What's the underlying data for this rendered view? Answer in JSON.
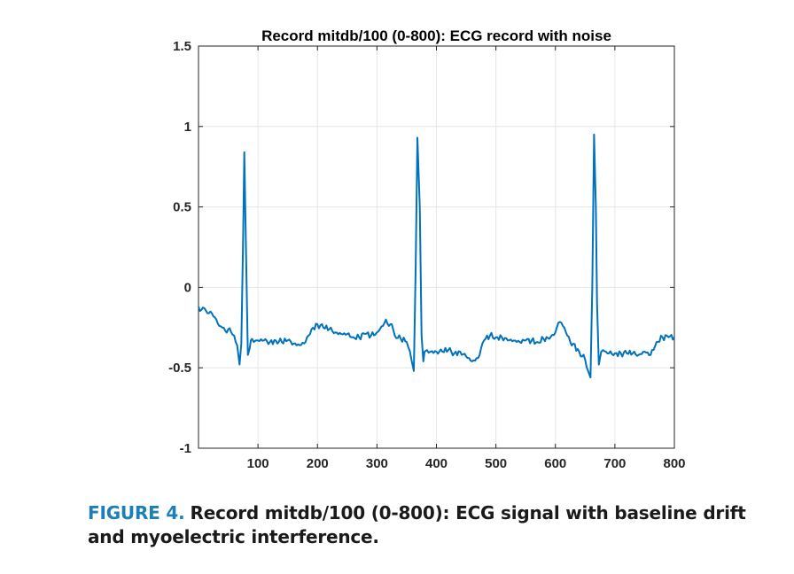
{
  "chart_data": {
    "type": "line",
    "title": "Record mitdb/100 (0-800): ECG record with noise",
    "xlabel": "",
    "ylabel": "",
    "xlim": [
      0,
      800
    ],
    "ylim": [
      -1,
      1.5
    ],
    "grid": true,
    "x_ticks": [
      100,
      200,
      300,
      400,
      500,
      600,
      700,
      800
    ],
    "x_tick_labels": [
      "100",
      "200",
      "300",
      "400",
      "500",
      "600",
      "700",
      "800"
    ],
    "y_ticks": [
      -1,
      -0.5,
      0,
      0.5,
      1,
      1.5
    ],
    "y_tick_labels": [
      "-1",
      "-0.5",
      "0",
      "0.5",
      "1",
      "1.5"
    ],
    "line_color": "#0072bd",
    "series": [
      {
        "name": "ECG record with noise",
        "x": [
          0,
          5,
          10,
          15,
          20,
          25,
          30,
          35,
          40,
          45,
          50,
          55,
          60,
          65,
          69,
          72,
          75,
          77,
          80,
          83,
          86,
          88,
          90,
          93,
          96,
          100,
          110,
          120,
          130,
          140,
          150,
          160,
          170,
          180,
          185,
          190,
          200,
          210,
          220,
          230,
          240,
          250,
          260,
          270,
          280,
          290,
          300,
          305,
          310,
          315,
          320,
          325,
          330,
          340,
          350,
          358,
          362,
          365,
          368,
          372,
          375,
          378,
          380,
          384,
          390,
          400,
          410,
          420,
          430,
          440,
          450,
          460,
          470,
          475,
          480,
          490,
          500,
          510,
          520,
          530,
          540,
          550,
          560,
          570,
          580,
          590,
          600,
          605,
          610,
          615,
          620,
          625,
          630,
          640,
          650,
          655,
          659,
          662,
          665,
          668,
          670,
          673,
          677,
          680,
          685,
          690,
          700,
          710,
          720,
          730,
          740,
          750,
          760,
          770,
          780,
          790,
          800
        ],
        "y": [
          -0.12,
          -0.14,
          -0.13,
          -0.16,
          -0.15,
          -0.18,
          -0.2,
          -0.24,
          -0.25,
          -0.27,
          -0.26,
          -0.28,
          -0.3,
          -0.36,
          -0.48,
          -0.35,
          0.3,
          0.84,
          0.2,
          -0.42,
          -0.38,
          -0.33,
          -0.32,
          -0.34,
          -0.33,
          -0.33,
          -0.33,
          -0.34,
          -0.33,
          -0.34,
          -0.33,
          -0.35,
          -0.36,
          -0.34,
          -0.3,
          -0.26,
          -0.23,
          -0.25,
          -0.26,
          -0.28,
          -0.29,
          -0.29,
          -0.31,
          -0.31,
          -0.29,
          -0.3,
          -0.28,
          -0.26,
          -0.24,
          -0.2,
          -0.24,
          -0.23,
          -0.3,
          -0.32,
          -0.34,
          -0.45,
          -0.52,
          0.1,
          0.93,
          0.5,
          -0.3,
          -0.46,
          -0.4,
          -0.39,
          -0.4,
          -0.4,
          -0.4,
          -0.39,
          -0.41,
          -0.4,
          -0.43,
          -0.46,
          -0.44,
          -0.38,
          -0.33,
          -0.3,
          -0.31,
          -0.31,
          -0.33,
          -0.33,
          -0.34,
          -0.33,
          -0.33,
          -0.34,
          -0.32,
          -0.32,
          -0.28,
          -0.22,
          -0.22,
          -0.25,
          -0.3,
          -0.34,
          -0.35,
          -0.4,
          -0.45,
          -0.52,
          -0.56,
          0.0,
          0.95,
          0.5,
          -0.1,
          -0.48,
          -0.4,
          -0.39,
          -0.4,
          -0.41,
          -0.41,
          -0.41,
          -0.41,
          -0.41,
          -0.42,
          -0.4,
          -0.42,
          -0.34,
          -0.31,
          -0.31,
          -0.31
        ]
      }
    ]
  },
  "caption": {
    "label": "FIGURE 4.",
    "text": "Record mitdb/100 (0-800): ECG signal with baseline drift and myoelectric interference."
  }
}
